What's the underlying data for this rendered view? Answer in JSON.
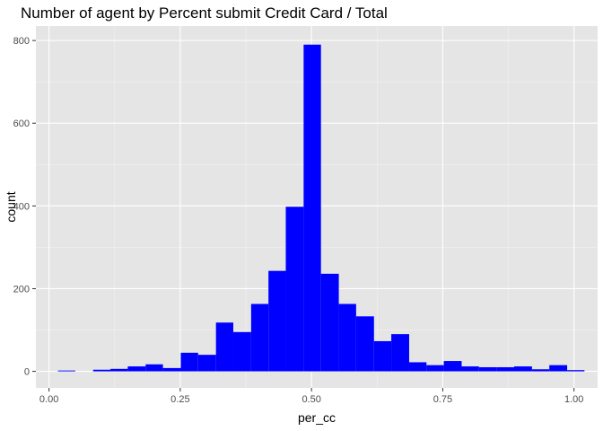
{
  "chart_data": {
    "type": "bar",
    "title": "Number of agent by Percent submit Credit Card / Total",
    "xlabel": "per_cc",
    "ylabel": "count",
    "xlim": [
      -0.025,
      1.045
    ],
    "ylim": [
      -40,
      835
    ],
    "x_ticks": [
      0.0,
      0.25,
      0.5,
      0.75,
      1.0
    ],
    "x_tick_labels": [
      "0.00",
      "0.25",
      "0.50",
      "0.75",
      "1.00"
    ],
    "y_ticks": [
      0,
      200,
      400,
      600,
      800
    ],
    "y_tick_labels": [
      "0",
      "200",
      "400",
      "600",
      "800"
    ],
    "bin_width": 0.0334,
    "bins": [
      {
        "x0": 0.017,
        "x1": 0.05,
        "count": 2
      },
      {
        "x0": 0.084,
        "x1": 0.117,
        "count": 4
      },
      {
        "x0": 0.117,
        "x1": 0.15,
        "count": 6
      },
      {
        "x0": 0.15,
        "x1": 0.184,
        "count": 12
      },
      {
        "x0": 0.184,
        "x1": 0.217,
        "count": 17
      },
      {
        "x0": 0.217,
        "x1": 0.251,
        "count": 8
      },
      {
        "x0": 0.251,
        "x1": 0.284,
        "count": 45
      },
      {
        "x0": 0.284,
        "x1": 0.318,
        "count": 40
      },
      {
        "x0": 0.318,
        "x1": 0.351,
        "count": 118
      },
      {
        "x0": 0.351,
        "x1": 0.385,
        "count": 95
      },
      {
        "x0": 0.385,
        "x1": 0.418,
        "count": 163
      },
      {
        "x0": 0.418,
        "x1": 0.451,
        "count": 243
      },
      {
        "x0": 0.451,
        "x1": 0.485,
        "count": 398
      },
      {
        "x0": 0.485,
        "x1": 0.518,
        "count": 790
      },
      {
        "x0": 0.518,
        "x1": 0.552,
        "count": 236
      },
      {
        "x0": 0.552,
        "x1": 0.585,
        "count": 163
      },
      {
        "x0": 0.585,
        "x1": 0.619,
        "count": 133
      },
      {
        "x0": 0.619,
        "x1": 0.652,
        "count": 73
      },
      {
        "x0": 0.652,
        "x1": 0.686,
        "count": 90
      },
      {
        "x0": 0.686,
        "x1": 0.719,
        "count": 22
      },
      {
        "x0": 0.719,
        "x1": 0.752,
        "count": 15
      },
      {
        "x0": 0.752,
        "x1": 0.786,
        "count": 25
      },
      {
        "x0": 0.786,
        "x1": 0.819,
        "count": 12
      },
      {
        "x0": 0.819,
        "x1": 0.853,
        "count": 10
      },
      {
        "x0": 0.853,
        "x1": 0.886,
        "count": 10
      },
      {
        "x0": 0.886,
        "x1": 0.92,
        "count": 12
      },
      {
        "x0": 0.92,
        "x1": 0.953,
        "count": 5
      },
      {
        "x0": 0.953,
        "x1": 0.987,
        "count": 15
      },
      {
        "x0": 0.987,
        "x1": 1.02,
        "count": 3
      }
    ],
    "bar_color": "#0000ff",
    "panel_background": "#e5e5e5",
    "grid": true,
    "legend": "none"
  }
}
